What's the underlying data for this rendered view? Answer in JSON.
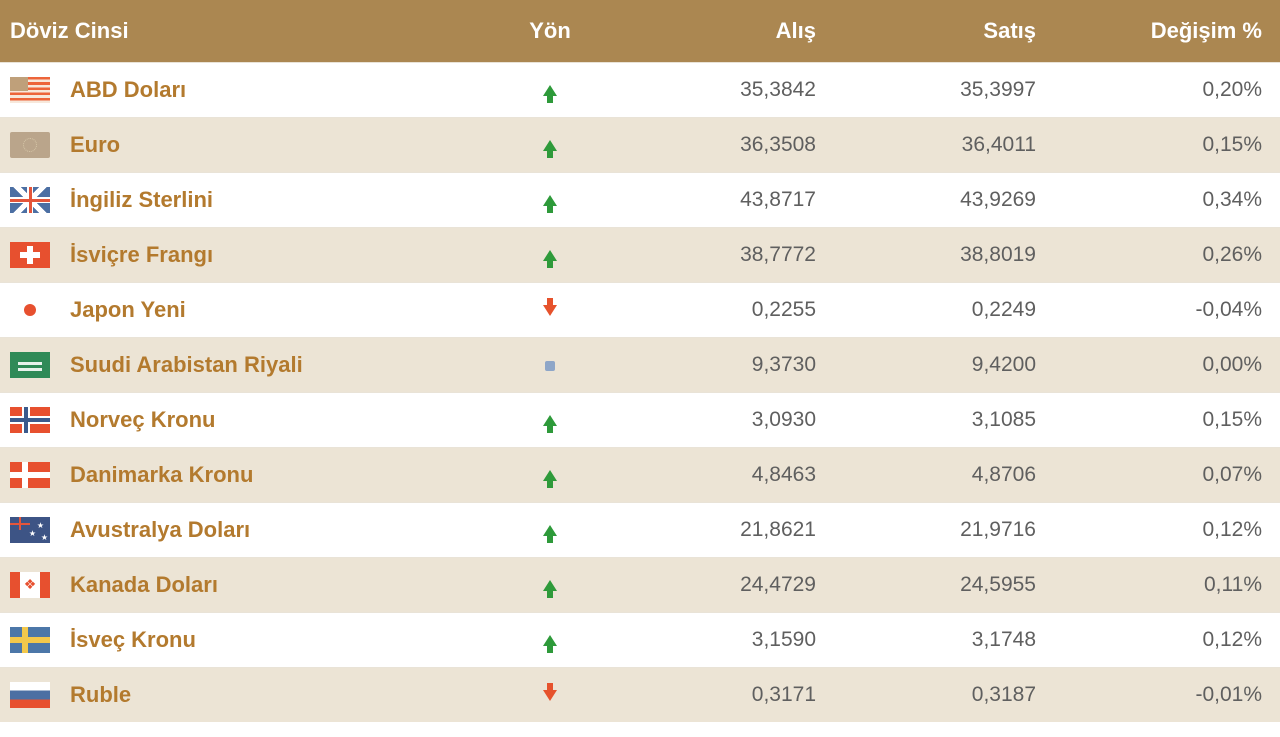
{
  "colors": {
    "header_bg": "#ab8751",
    "header_text": "#ffffff",
    "row_even": "#ffffff",
    "row_odd": "#ece4d5",
    "currency_name": "#b37a2e",
    "value_text": "#5f5f5f",
    "up": "#2e9a3a",
    "down": "#e6522c",
    "neutral": "#8ea6c8"
  },
  "headers": {
    "name": "Döviz Cinsi",
    "direction": "Yön",
    "buy": "Alış",
    "sell": "Satış",
    "change": "Değişim %"
  },
  "rows": [
    {
      "flag": "us",
      "name": "ABD Doları",
      "dir": "up",
      "buy": "35,3842",
      "sell": "35,3997",
      "change": "0,20%"
    },
    {
      "flag": "eu",
      "name": "Euro",
      "dir": "up",
      "buy": "36,3508",
      "sell": "36,4011",
      "change": "0,15%"
    },
    {
      "flag": "gb",
      "name": "İngiliz Sterlini",
      "dir": "up",
      "buy": "43,8717",
      "sell": "43,9269",
      "change": "0,34%"
    },
    {
      "flag": "ch",
      "name": "İsviçre Frangı",
      "dir": "up",
      "buy": "38,7772",
      "sell": "38,8019",
      "change": "0,26%"
    },
    {
      "flag": "jp",
      "name": "Japon Yeni",
      "dir": "down",
      "buy": "0,2255",
      "sell": "0,2249",
      "change": "-0,04%"
    },
    {
      "flag": "sa",
      "name": "Suudi Arabistan Riyali",
      "dir": "neutral",
      "buy": "9,3730",
      "sell": "9,4200",
      "change": "0,00%"
    },
    {
      "flag": "no",
      "name": "Norveç Kronu",
      "dir": "up",
      "buy": "3,0930",
      "sell": "3,1085",
      "change": "0,15%"
    },
    {
      "flag": "dk",
      "name": "Danimarka Kronu",
      "dir": "up",
      "buy": "4,8463",
      "sell": "4,8706",
      "change": "0,07%"
    },
    {
      "flag": "au",
      "name": "Avustralya Doları",
      "dir": "up",
      "buy": "21,8621",
      "sell": "21,9716",
      "change": "0,12%"
    },
    {
      "flag": "ca",
      "name": "Kanada Doları",
      "dir": "up",
      "buy": "24,4729",
      "sell": "24,5955",
      "change": "0,11%"
    },
    {
      "flag": "se",
      "name": "İsveç Kronu",
      "dir": "up",
      "buy": "3,1590",
      "sell": "3,1748",
      "change": "0,12%"
    },
    {
      "flag": "ru",
      "name": "Ruble",
      "dir": "down",
      "buy": "0,3171",
      "sell": "0,3187",
      "change": "-0,01%"
    }
  ]
}
